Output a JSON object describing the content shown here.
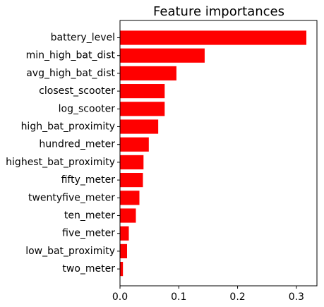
{
  "chart_data": {
    "type": "bar",
    "orientation": "horizontal",
    "title": "Feature importances",
    "xlabel": "",
    "ylabel": "",
    "categories": [
      "battery_level",
      "min_high_bat_dist",
      "avg_high_bat_dist",
      "closest_scooter",
      "log_scooter",
      "high_bat_proximity",
      "hundred_meter",
      "highest_bat_proximity",
      "fifty_meter",
      "twentyfive_meter",
      "ten_meter",
      "five_meter",
      "low_bat_proximity",
      "two_meter"
    ],
    "values": [
      0.317,
      0.144,
      0.096,
      0.076,
      0.076,
      0.065,
      0.049,
      0.04,
      0.039,
      0.033,
      0.027,
      0.015,
      0.012,
      0.005
    ],
    "xlim": [
      0,
      0.335
    ],
    "xticks": [
      0.0,
      0.1,
      0.2,
      0.3
    ],
    "xtick_labels": [
      "0.0",
      "0.1",
      "0.2",
      "0.3"
    ],
    "grid": false,
    "legend": "none",
    "bar_color": "#ff0000"
  }
}
